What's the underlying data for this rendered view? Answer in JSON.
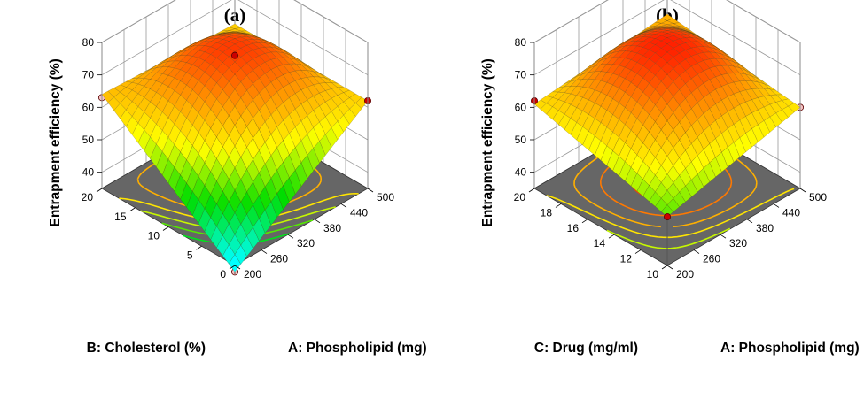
{
  "chart_data": [
    {
      "type": "surface3d",
      "panel_label": "(a)",
      "z_label": "Entrapment efficiency  (%)",
      "z_ticks": [
        "40",
        "50",
        "60",
        "70",
        "80"
      ],
      "zlim": [
        35,
        80
      ],
      "x_factor": {
        "label": "A: Phospholipid (mg)",
        "ticks": [
          "200",
          "260",
          "320",
          "380",
          "440",
          "500"
        ],
        "range": [
          200,
          500
        ]
      },
      "y_factor": {
        "label": "B: Cholesterol (%)",
        "ticks": [
          "0",
          "5",
          "10",
          "15",
          "20"
        ],
        "range": [
          0,
          20
        ]
      },
      "surface_values": {
        "corner_low_low": 33,
        "corner_high_low": 62,
        "corner_low_high": 64,
        "corner_high_high": 62,
        "peak": 74
      },
      "design_points": [
        {
          "x": 500,
          "y": 0,
          "z": 62,
          "type": "above"
        },
        {
          "x": 200,
          "y": 20,
          "z": 63,
          "type": "below"
        },
        {
          "x": 350,
          "y": 10,
          "z": 76,
          "type": "above"
        },
        {
          "x": 350,
          "y": 10,
          "z": 71,
          "type": "below"
        },
        {
          "x": 200,
          "y": 0,
          "z": 33,
          "type": "below"
        }
      ],
      "colormap": [
        "#00ffff",
        "#00dd00",
        "#ffff00",
        "#ff8800",
        "#ff0000"
      ]
    },
    {
      "type": "surface3d",
      "panel_label": "(b)",
      "z_label": "Entrapment efficiency  (%)",
      "z_ticks": [
        "40",
        "50",
        "60",
        "70",
        "80"
      ],
      "zlim": [
        35,
        80
      ],
      "x_factor": {
        "label": "A: Phospholipid (mg)",
        "ticks": [
          "200",
          "260",
          "320",
          "380",
          "440",
          "500"
        ],
        "range": [
          200,
          500
        ]
      },
      "y_factor": {
        "label": "C: Drug (mg/ml)",
        "ticks": [
          "10",
          "12",
          "14",
          "16",
          "18",
          "20"
        ],
        "range": [
          10,
          20
        ]
      },
      "surface_values": {
        "corner_low_low": 50,
        "corner_high_low": 60,
        "corner_low_high": 61,
        "corner_high_high": 65,
        "peak": 77
      },
      "design_points": [
        {
          "x": 500,
          "y": 10,
          "z": 60,
          "type": "below"
        },
        {
          "x": 200,
          "y": 20,
          "z": 62,
          "type": "above"
        },
        {
          "x": 350,
          "y": 15,
          "z": 71,
          "type": "below"
        },
        {
          "x": 200,
          "y": 10,
          "z": 50,
          "type": "above"
        }
      ],
      "colormap": [
        "#00ffff",
        "#00dd00",
        "#ffff00",
        "#ff8800",
        "#ff0000"
      ]
    }
  ]
}
